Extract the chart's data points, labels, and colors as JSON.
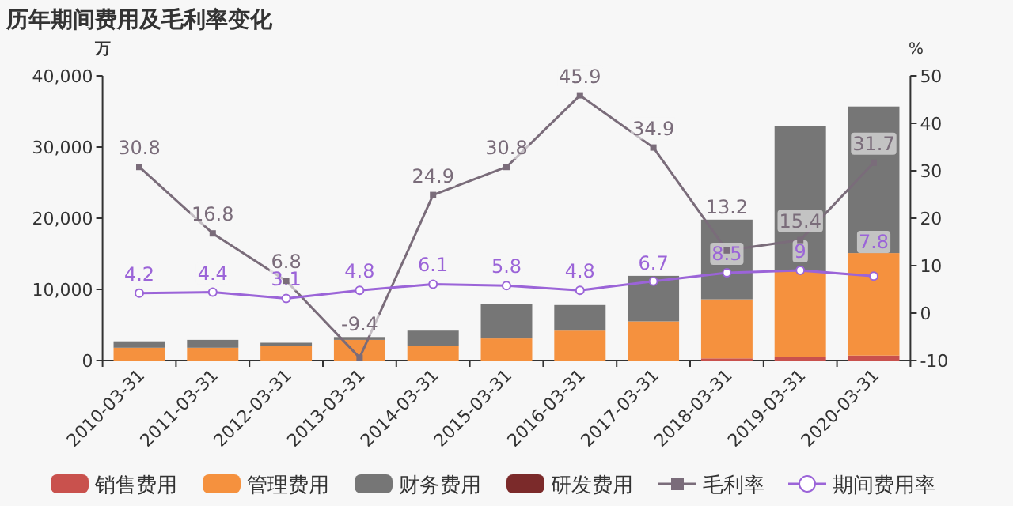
{
  "chart_data": {
    "type": "bar",
    "title": "历年期间费用及毛利率变化",
    "ylabel": "万",
    "y2label": "%",
    "stacked": true,
    "legend": "bottom",
    "grid": false,
    "categories": [
      "2010-03-31",
      "2011-03-31",
      "2012-03-31",
      "2013-03-31",
      "2014-03-31",
      "2015-03-31",
      "2016-03-31",
      "2017-03-31",
      "2018-03-31",
      "2019-03-31",
      "2020-03-31"
    ],
    "ylim": [
      0,
      40000
    ],
    "yticks": [
      0,
      {
        "value": 10000,
        "label": "10,000"
      },
      {
        "value": 20000,
        "label": "20,000"
      },
      {
        "value": 30000,
        "label": "30,000"
      },
      {
        "value": 40000,
        "label": "40,000"
      }
    ],
    "y2lim": [
      -10,
      50
    ],
    "y2ticks": [
      -10,
      0,
      10,
      20,
      30,
      40,
      50
    ],
    "series": [
      {
        "name": "销售费用",
        "color": "#c9514d",
        "values": [
          null,
          null,
          null,
          null,
          null,
          null,
          null,
          null,
          300,
          500,
          700
        ]
      },
      {
        "name": "管理费用",
        "color": "#f5913e",
        "values": [
          1800,
          1800,
          2000,
          2900,
          2000,
          3100,
          4200,
          5500,
          8300,
          12000,
          14400
        ]
      },
      {
        "name": "财务费用",
        "color": "#767676",
        "values": [
          900,
          1100,
          500,
          400,
          2200,
          4800,
          3600,
          6400,
          11200,
          20500,
          20600
        ]
      },
      {
        "name": "研发费用",
        "color": "#7b2a2a",
        "values": [
          null,
          null,
          null,
          null,
          null,
          null,
          null,
          null,
          null,
          null,
          null
        ]
      },
      {
        "name": "毛利率",
        "type": "line",
        "axis": "y2",
        "marker": "square",
        "color": "#7a6c7a",
        "values": [
          30.8,
          16.8,
          6.8,
          -9.4,
          24.9,
          30.8,
          45.9,
          34.9,
          13.2,
          15.4,
          31.7
        ],
        "value_labels": [
          "30.8",
          "16.8",
          "6.8",
          "-9.4",
          "24.9",
          "30.8",
          "45.9",
          "34.9",
          "13.2",
          "15.4",
          "31.7"
        ]
      },
      {
        "name": "期间费用率",
        "type": "line",
        "axis": "y2",
        "marker": "circle",
        "color": "#9b64d8",
        "values": [
          4.2,
          4.4,
          3.1,
          4.8,
          6.1,
          5.8,
          4.8,
          6.7,
          8.5,
          9,
          7.8
        ],
        "value_labels": [
          "4.2",
          "4.4",
          "3.1",
          "4.8",
          "6.1",
          "5.8",
          "4.8",
          "6.7",
          "8.5",
          "9",
          "7.8"
        ]
      }
    ]
  }
}
